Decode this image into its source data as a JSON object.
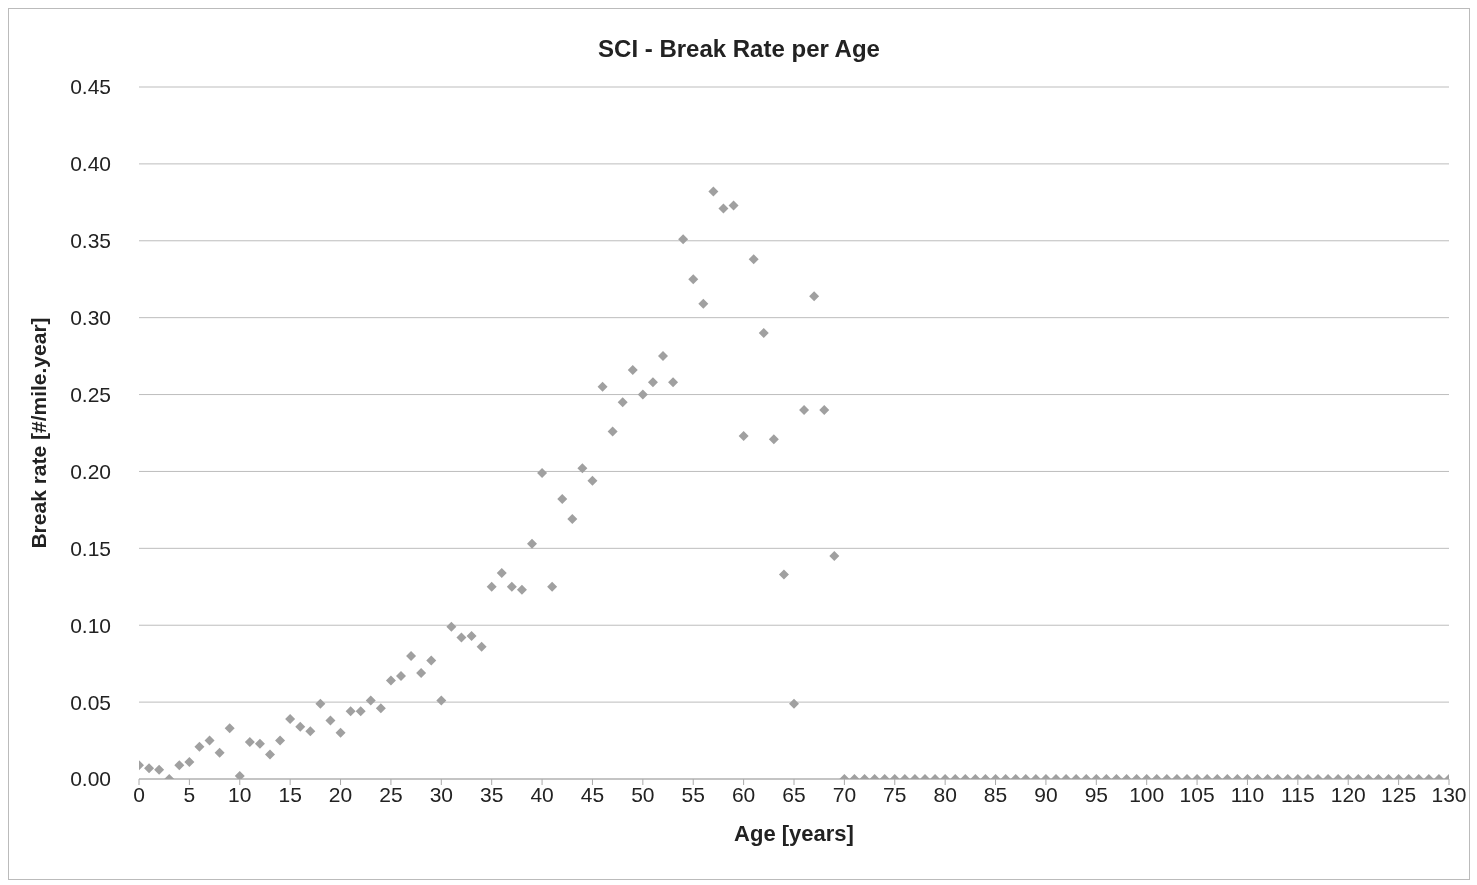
{
  "chart_data": {
    "type": "scatter",
    "title": "SCI - Break Rate per Age",
    "xlabel": "Age [years]",
    "ylabel": "Break rate [#/mile.year]",
    "x": [
      0,
      1,
      2,
      3,
      4,
      5,
      6,
      7,
      8,
      9,
      10,
      11,
      12,
      13,
      14,
      15,
      16,
      17,
      18,
      19,
      20,
      21,
      22,
      23,
      24,
      25,
      26,
      27,
      28,
      29,
      30,
      31,
      32,
      33,
      34,
      35,
      36,
      37,
      38,
      39,
      40,
      41,
      42,
      43,
      44,
      45,
      46,
      47,
      48,
      49,
      50,
      51,
      52,
      53,
      54,
      55,
      56,
      57,
      58,
      59,
      60,
      61,
      62,
      63,
      64,
      65,
      66,
      67,
      68,
      69,
      70,
      71,
      72,
      73,
      74,
      75,
      76,
      77,
      78,
      79,
      80,
      81,
      82,
      83,
      84,
      85,
      86,
      87,
      88,
      89,
      90,
      91,
      92,
      93,
      94,
      95,
      96,
      97,
      98,
      99,
      100,
      101,
      102,
      103,
      104,
      105,
      106,
      107,
      108,
      109,
      110,
      111,
      112,
      113,
      114,
      115,
      116,
      117,
      118,
      119,
      120,
      121,
      122,
      123,
      124,
      125,
      126,
      127,
      128,
      129,
      130
    ],
    "series": [
      {
        "color": "#a0a0a0",
        "values": [
          0.009,
          0.007,
          0.006,
          0.0,
          0.009,
          0.011,
          0.021,
          0.025,
          0.017,
          0.033,
          0.002,
          0.024,
          0.023,
          0.016,
          0.025,
          0.039,
          0.034,
          0.031,
          0.049,
          0.038,
          0.03,
          0.044,
          0.044,
          0.051,
          0.046,
          0.064,
          0.067,
          0.08,
          0.069,
          0.077,
          0.051,
          0.099,
          0.092,
          0.093,
          0.086,
          0.125,
          0.134,
          0.125,
          0.123,
          0.153,
          0.199,
          0.125,
          0.182,
          0.169,
          0.202,
          0.194,
          0.255,
          0.226,
          0.245,
          0.266,
          0.25,
          0.258,
          0.275,
          0.258,
          0.351,
          0.325,
          0.309,
          0.382,
          0.371,
          0.373,
          0.223,
          0.338,
          0.29,
          0.221,
          0.133,
          0.049,
          0.24,
          0.314,
          0.24,
          0.145,
          0,
          0,
          0,
          0,
          0,
          0,
          0,
          0,
          0,
          0,
          0,
          0,
          0,
          0,
          0,
          0,
          0,
          0,
          0,
          0,
          0,
          0,
          0,
          0,
          0,
          0,
          0,
          0,
          0,
          0,
          0,
          0,
          0,
          0,
          0,
          0,
          0,
          0,
          0,
          0,
          0,
          0,
          0,
          0,
          0,
          0,
          0,
          0,
          0,
          0,
          0,
          0,
          0,
          0,
          0,
          0,
          0,
          0,
          0,
          0,
          0
        ]
      }
    ],
    "xlim": [
      0,
      130
    ],
    "xticks": [
      0,
      5,
      10,
      15,
      20,
      25,
      30,
      35,
      40,
      45,
      50,
      55,
      60,
      65,
      70,
      75,
      80,
      85,
      90,
      95,
      100,
      105,
      110,
      115,
      120,
      125,
      130
    ],
    "ylim": [
      0,
      0.45
    ],
    "yticks": [
      {
        "value": 0,
        "label": "0.00"
      },
      {
        "value": 0.05,
        "label": "0.05"
      },
      {
        "value": 0.1,
        "label": "0.10"
      },
      {
        "value": 0.15,
        "label": "0.15"
      },
      {
        "value": 0.2,
        "label": "0.20"
      },
      {
        "value": 0.25,
        "label": "0.25"
      },
      {
        "value": 0.3,
        "label": "0.30"
      },
      {
        "value": 0.35,
        "label": "0.35"
      },
      {
        "value": 0.4,
        "label": "0.40"
      },
      {
        "value": 0.45,
        "label": "0.45"
      }
    ],
    "grid": "y",
    "legend": false,
    "marker": "diamond"
  }
}
